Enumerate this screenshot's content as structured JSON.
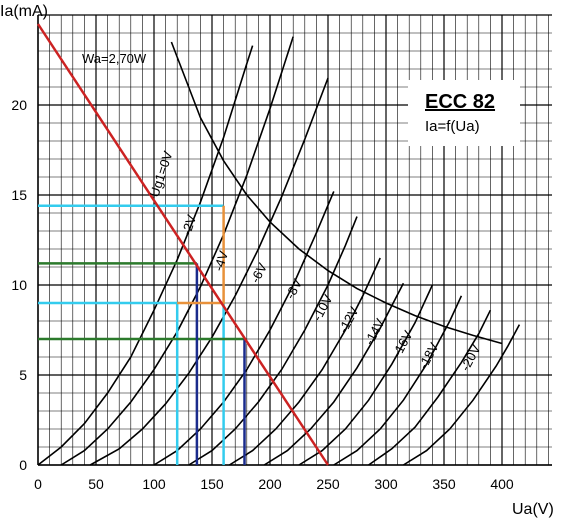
{
  "chart_data": {
    "type": "line",
    "title": "ECC 82",
    "subtitle": "Ia=f(Ua)",
    "xlabel": "Ua(V)",
    "ylabel": "Ia(mA)",
    "xlim": [
      0,
      400
    ],
    "ylim": [
      0,
      24
    ],
    "x_ticks": [
      0,
      50,
      100,
      150,
      200,
      250,
      300,
      350,
      400
    ],
    "y_ticks": [
      0,
      5,
      10,
      15,
      20
    ],
    "grid": true,
    "annotations": {
      "power_curve_label": "Wa=2,70W"
    },
    "series": [
      {
        "name": "Ug1=0V",
        "points": [
          [
            0,
            0
          ],
          [
            20,
            1.0
          ],
          [
            40,
            2.3
          ],
          [
            60,
            4.0
          ],
          [
            80,
            6.0
          ],
          [
            100,
            8.6
          ],
          [
            120,
            11.4
          ],
          [
            140,
            14.6
          ],
          [
            160,
            18.2
          ],
          [
            180,
            22.3
          ],
          [
            185,
            23.3
          ]
        ]
      },
      {
        "name": "-2V",
        "points": [
          [
            20,
            0
          ],
          [
            40,
            0.8
          ],
          [
            60,
            2.0
          ],
          [
            80,
            3.5
          ],
          [
            100,
            5.3
          ],
          [
            120,
            7.4
          ],
          [
            140,
            9.9
          ],
          [
            160,
            12.8
          ],
          [
            180,
            16.1
          ],
          [
            200,
            19.8
          ],
          [
            220,
            23.8
          ]
        ]
      },
      {
        "name": "-4V",
        "points": [
          [
            45,
            0
          ],
          [
            70,
            0.9
          ],
          [
            90,
            2.0
          ],
          [
            110,
            3.4
          ],
          [
            130,
            5.1
          ],
          [
            150,
            7.1
          ],
          [
            170,
            9.4
          ],
          [
            190,
            12.0
          ],
          [
            210,
            14.9
          ],
          [
            230,
            18.1
          ],
          [
            250,
            21.5
          ]
        ]
      },
      {
        "name": "-6V",
        "points": [
          [
            100,
            0
          ],
          [
            120,
            0.8
          ],
          [
            140,
            2.0
          ],
          [
            160,
            3.5
          ],
          [
            180,
            5.3
          ],
          [
            200,
            7.5
          ],
          [
            220,
            10.0
          ],
          [
            240,
            12.9
          ],
          [
            255,
            15.2
          ]
        ]
      },
      {
        "name": "-8V",
        "points": [
          [
            130,
            0
          ],
          [
            150,
            0.8
          ],
          [
            170,
            2.0
          ],
          [
            190,
            3.5
          ],
          [
            210,
            5.3
          ],
          [
            230,
            7.5
          ],
          [
            250,
            10.0
          ],
          [
            265,
            12.2
          ],
          [
            275,
            13.8
          ]
        ]
      },
      {
        "name": "-10V",
        "points": [
          [
            165,
            0
          ],
          [
            185,
            0.8
          ],
          [
            205,
            2.0
          ],
          [
            225,
            3.5
          ],
          [
            245,
            5.3
          ],
          [
            265,
            7.5
          ],
          [
            280,
            9.4
          ],
          [
            295,
            11.5
          ]
        ]
      },
      {
        "name": "-12V",
        "points": [
          [
            195,
            0
          ],
          [
            215,
            0.8
          ],
          [
            235,
            2.0
          ],
          [
            255,
            3.5
          ],
          [
            275,
            5.4
          ],
          [
            295,
            7.6
          ],
          [
            315,
            10.1
          ]
        ]
      },
      {
        "name": "-14V",
        "points": [
          [
            225,
            0
          ],
          [
            245,
            0.8
          ],
          [
            265,
            2.0
          ],
          [
            285,
            3.6
          ],
          [
            305,
            5.6
          ],
          [
            325,
            7.9
          ],
          [
            340,
            10.0
          ]
        ]
      },
      {
        "name": "-16V",
        "points": [
          [
            255,
            0
          ],
          [
            275,
            0.8
          ],
          [
            295,
            2.0
          ],
          [
            315,
            3.6
          ],
          [
            335,
            5.6
          ],
          [
            355,
            8.0
          ],
          [
            365,
            9.4
          ]
        ]
      },
      {
        "name": "-18V",
        "points": [
          [
            285,
            0
          ],
          [
            305,
            0.9
          ],
          [
            325,
            2.1
          ],
          [
            345,
            3.8
          ],
          [
            365,
            5.7
          ],
          [
            380,
            7.3
          ],
          [
            390,
            8.6
          ]
        ]
      },
      {
        "name": "-20V",
        "points": [
          [
            315,
            0
          ],
          [
            335,
            0.8
          ],
          [
            355,
            2.0
          ],
          [
            375,
            3.6
          ],
          [
            395,
            5.5
          ],
          [
            405,
            6.6
          ],
          [
            415,
            7.8
          ]
        ]
      }
    ],
    "power_limit_curve": {
      "name": "Wa=2,70W",
      "points": [
        [
          115,
          23.5
        ],
        [
          140,
          19.3
        ],
        [
          160,
          16.9
        ],
        [
          180,
          15.0
        ],
        [
          200,
          13.5
        ],
        [
          225,
          12.0
        ],
        [
          250,
          10.8
        ],
        [
          275,
          9.8
        ],
        [
          300,
          9.0
        ],
        [
          325,
          8.3
        ],
        [
          350,
          7.7
        ],
        [
          375,
          7.2
        ],
        [
          400,
          6.75
        ]
      ]
    },
    "load_line": {
      "points": [
        [
          0,
          24.5
        ],
        [
          250,
          0
        ]
      ]
    },
    "operating_point": {
      "x": 160,
      "y": 9.0
    },
    "guide_lines": [
      {
        "color": "#33ccee",
        "points": [
          [
            0,
            14.4
          ],
          [
            110,
            14.4
          ],
          [
            160,
            14.4
          ]
        ]
      },
      {
        "color": "#33ccee",
        "points": [
          [
            0,
            9.0
          ],
          [
            120,
            9.0
          ],
          [
            120,
            0
          ]
        ]
      },
      {
        "color": "#33ccee",
        "points": [
          [
            160,
            0
          ],
          [
            160,
            9.0
          ]
        ]
      },
      {
        "color": "#2b7a2b",
        "points": [
          [
            0,
            11.2
          ],
          [
            137,
            11.2
          ]
        ]
      },
      {
        "color": "#2b7a2b",
        "points": [
          [
            0,
            7.0
          ],
          [
            178,
            7.0
          ]
        ]
      },
      {
        "color": "#1a2b8c",
        "points": [
          [
            137,
            11.2
          ],
          [
            137,
            0
          ]
        ]
      },
      {
        "color": "#1a2b8c",
        "points": [
          [
            178,
            7.0
          ],
          [
            178,
            0
          ]
        ]
      },
      {
        "color": "#e8913a",
        "points": [
          [
            120,
            9.0
          ],
          [
            160,
            9.0
          ],
          [
            160,
            14.4
          ]
        ]
      }
    ],
    "colors": {
      "curves": "#000000",
      "load_line": "#cc2222",
      "grid": "#000000"
    }
  }
}
